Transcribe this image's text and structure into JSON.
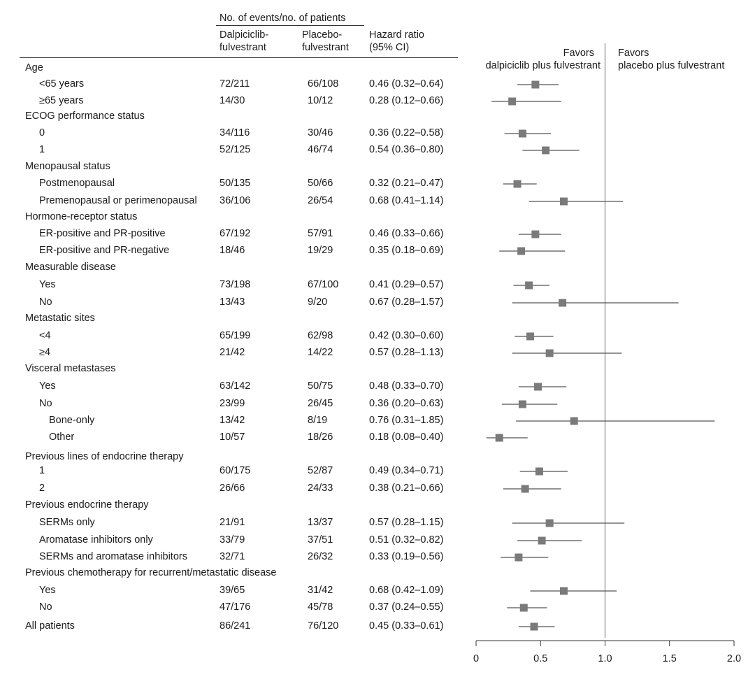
{
  "header": {
    "group_label": "No. of events/no. of patients",
    "col_dalp_line1": "Dalpiciclib-",
    "col_dalp_line2": "fulvestrant",
    "col_plac_line1": "Placebo-",
    "col_plac_line2": "fulvestrant",
    "col_hr_line1": "Hazard ratio",
    "col_hr_line2": "(95% CI)"
  },
  "favors": {
    "left_line1": "Favors",
    "left_line2": "dalpiciclib plus fulvestrant",
    "right_line1": "Favors",
    "right_line2": "placebo plus fulvestrant"
  },
  "rows": [
    {
      "type": "group",
      "label": "Age"
    },
    {
      "type": "sub",
      "indent": 1,
      "label": "<65 years",
      "dalp": "72/211",
      "plac": "66/108",
      "hr_text": "0.46 (0.32–0.64)"
    },
    {
      "type": "sub",
      "indent": 1,
      "label": "≥65 years",
      "dalp": "14/30",
      "plac": "10/12",
      "hr_text": "0.28 (0.12–0.66)"
    },
    {
      "type": "group",
      "label": "ECOG performance status"
    },
    {
      "type": "sub",
      "indent": 1,
      "label": "0",
      "dalp": "34/116",
      "plac": "30/46",
      "hr_text": "0.36 (0.22–0.58)"
    },
    {
      "type": "sub",
      "indent": 1,
      "label": "1",
      "dalp": "52/125",
      "plac": "46/74",
      "hr_text": "0.54 (0.36–0.80)"
    },
    {
      "type": "group",
      "label": "Menopausal status"
    },
    {
      "type": "sub",
      "indent": 1,
      "label": "Postmenopausal",
      "dalp": "50/135",
      "plac": "50/66",
      "hr_text": "0.32 (0.21–0.47)"
    },
    {
      "type": "sub",
      "indent": 1,
      "label": "Premenopausal or perimenopausal",
      "dalp": "36/106",
      "plac": "26/54",
      "hr_text": "0.68 (0.41–1.14)"
    },
    {
      "type": "group",
      "label": "Hormone-receptor status"
    },
    {
      "type": "sub",
      "indent": 1,
      "label": "ER-positive and PR-positive",
      "dalp": "67/192",
      "plac": "57/91",
      "hr_text": "0.46 (0.33–0.66)"
    },
    {
      "type": "sub",
      "indent": 1,
      "label": "ER-positive and PR-negative",
      "dalp": "18/46",
      "plac": "19/29",
      "hr_text": "0.35 (0.18–0.69)"
    },
    {
      "type": "group",
      "label": "Measurable disease"
    },
    {
      "type": "sub",
      "indent": 1,
      "label": "Yes",
      "dalp": "73/198",
      "plac": "67/100",
      "hr_text": "0.41 (0.29–0.57)"
    },
    {
      "type": "sub",
      "indent": 1,
      "label": "No",
      "dalp": "13/43",
      "plac": "9/20",
      "hr_text": "0.67 (0.28–1.57)"
    },
    {
      "type": "group",
      "label": "Metastatic sites"
    },
    {
      "type": "sub",
      "indent": 1,
      "label": "<4",
      "dalp": "65/199",
      "plac": "62/98",
      "hr_text": "0.42 (0.30–0.60)"
    },
    {
      "type": "sub",
      "indent": 1,
      "label": "≥4",
      "dalp": "21/42",
      "plac": "14/22",
      "hr_text": "0.57 (0.28–1.13)"
    },
    {
      "type": "group",
      "label": "Visceral metastases"
    },
    {
      "type": "sub",
      "indent": 1,
      "label": "Yes",
      "dalp": "63/142",
      "plac": "50/75",
      "hr_text": "0.48 (0.33–0.70)"
    },
    {
      "type": "sub",
      "indent": 1,
      "label": "No",
      "dalp": "23/99",
      "plac": "26/45",
      "hr_text": "0.36 (0.20–0.63)"
    },
    {
      "type": "sub",
      "indent": 2,
      "label": "Bone-only",
      "dalp": "13/42",
      "plac": "8/19",
      "hr_text": "0.76 (0.31–1.85)"
    },
    {
      "type": "sub",
      "indent": 2,
      "label": "Other",
      "dalp": "10/57",
      "plac": "18/26",
      "hr_text": "0.18 (0.08–0.40)"
    },
    {
      "type": "group",
      "label": "Previous lines of endocrine therapy"
    },
    {
      "type": "sub",
      "indent": 1,
      "label": "1",
      "dalp": "60/175",
      "plac": "52/87",
      "hr_text": "0.49 (0.34–0.71)"
    },
    {
      "type": "sub",
      "indent": 1,
      "label": "2",
      "dalp": "26/66",
      "plac": "24/33",
      "hr_text": "0.38 (0.21–0.66)"
    },
    {
      "type": "group",
      "label": "Previous endocrine therapy"
    },
    {
      "type": "sub",
      "indent": 1,
      "label": "SERMs only",
      "dalp": "21/91",
      "plac": "13/37",
      "hr_text": "0.57 (0.28–1.15)"
    },
    {
      "type": "sub",
      "indent": 1,
      "label": "Aromatase inhibitors only",
      "dalp": "33/79",
      "plac": "37/51",
      "hr_text": "0.51 (0.32–0.82)"
    },
    {
      "type": "sub",
      "indent": 1,
      "label": "SERMs and aromatase inhibitors",
      "dalp": "32/71",
      "plac": "26/32",
      "hr_text": "0.33 (0.19–0.56)"
    },
    {
      "type": "group",
      "label": "Previous chemotherapy for recurrent/metastatic disease"
    },
    {
      "type": "sub",
      "indent": 1,
      "label": "Yes",
      "dalp": "39/65",
      "plac": "31/42",
      "hr_text": "0.68 (0.42–1.09)"
    },
    {
      "type": "sub",
      "indent": 1,
      "label": "No",
      "dalp": "47/176",
      "plac": "45/78",
      "hr_text": "0.37 (0.24–0.55)"
    },
    {
      "type": "sub",
      "indent": 0,
      "label": "All patients",
      "dalp": "86/241",
      "plac": "76/120",
      "hr_text": "0.45 (0.33–0.61)"
    }
  ],
  "chart_data": {
    "type": "forest",
    "x_ticks": [
      "0",
      "0.5",
      "1.0",
      "1.5",
      "2.0"
    ],
    "xlim": [
      0,
      2.0
    ],
    "reference_line": 1.0,
    "marker_color": "#7a7a7a",
    "points": [
      {
        "label": "<65 years",
        "hr": 0.46,
        "lo": 0.32,
        "hi": 0.64
      },
      {
        "label": "≥65 years",
        "hr": 0.28,
        "lo": 0.12,
        "hi": 0.66
      },
      {
        "label": "ECOG 0",
        "hr": 0.36,
        "lo": 0.22,
        "hi": 0.58
      },
      {
        "label": "ECOG 1",
        "hr": 0.54,
        "lo": 0.36,
        "hi": 0.8
      },
      {
        "label": "Postmenopausal",
        "hr": 0.32,
        "lo": 0.21,
        "hi": 0.47
      },
      {
        "label": "Premenopausal or perimenopausal",
        "hr": 0.68,
        "lo": 0.41,
        "hi": 1.14
      },
      {
        "label": "ER-positive and PR-positive",
        "hr": 0.46,
        "lo": 0.33,
        "hi": 0.66
      },
      {
        "label": "ER-positive and PR-negative",
        "hr": 0.35,
        "lo": 0.18,
        "hi": 0.69
      },
      {
        "label": "Measurable disease Yes",
        "hr": 0.41,
        "lo": 0.29,
        "hi": 0.57
      },
      {
        "label": "Measurable disease No",
        "hr": 0.67,
        "lo": 0.28,
        "hi": 1.57
      },
      {
        "label": "<4",
        "hr": 0.42,
        "lo": 0.3,
        "hi": 0.6
      },
      {
        "label": "≥4",
        "hr": 0.57,
        "lo": 0.28,
        "hi": 1.13
      },
      {
        "label": "Visceral Yes",
        "hr": 0.48,
        "lo": 0.33,
        "hi": 0.7
      },
      {
        "label": "Visceral No",
        "hr": 0.36,
        "lo": 0.2,
        "hi": 0.63
      },
      {
        "label": "Bone-only",
        "hr": 0.76,
        "lo": 0.31,
        "hi": 1.85
      },
      {
        "label": "Other",
        "hr": 0.18,
        "lo": 0.08,
        "hi": 0.4
      },
      {
        "label": "Previous lines 1",
        "hr": 0.49,
        "lo": 0.34,
        "hi": 0.71
      },
      {
        "label": "Previous lines 2",
        "hr": 0.38,
        "lo": 0.21,
        "hi": 0.66
      },
      {
        "label": "SERMs only",
        "hr": 0.57,
        "lo": 0.28,
        "hi": 1.15
      },
      {
        "label": "Aromatase inhibitors only",
        "hr": 0.51,
        "lo": 0.32,
        "hi": 0.82
      },
      {
        "label": "SERMs and aromatase inhibitors",
        "hr": 0.33,
        "lo": 0.19,
        "hi": 0.56
      },
      {
        "label": "Previous chemotherapy Yes",
        "hr": 0.68,
        "lo": 0.42,
        "hi": 1.09
      },
      {
        "label": "Previous chemotherapy No",
        "hr": 0.37,
        "lo": 0.24,
        "hi": 0.55
      },
      {
        "label": "All patients",
        "hr": 0.45,
        "lo": 0.33,
        "hi": 0.61
      }
    ]
  }
}
